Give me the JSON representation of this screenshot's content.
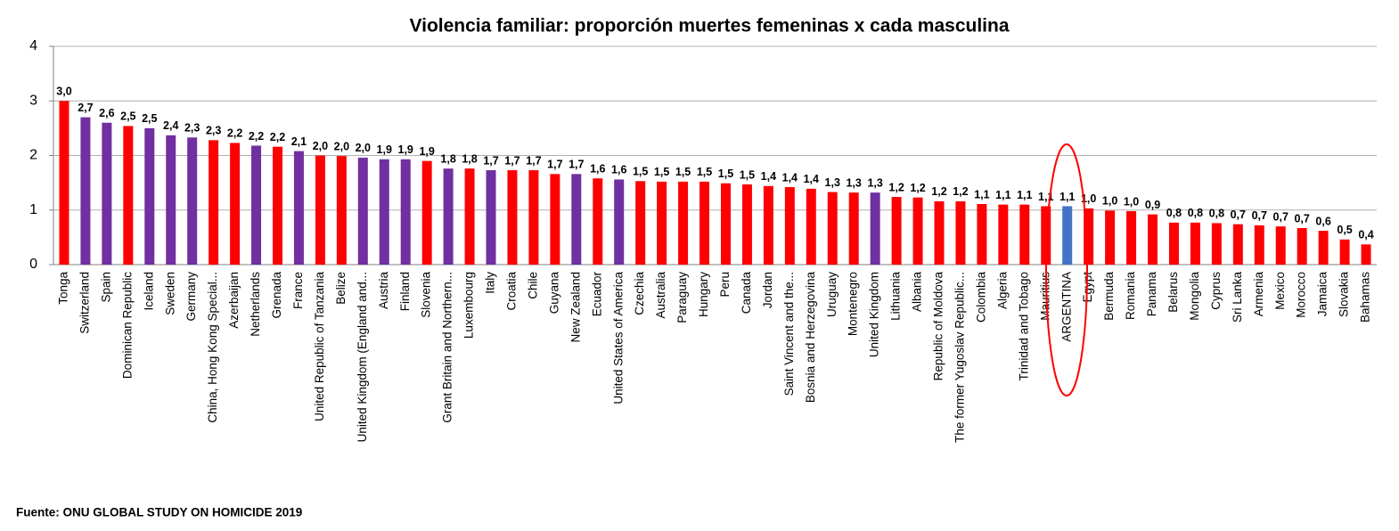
{
  "chart_data": {
    "type": "bar",
    "title": "Violencia familiar: proporción muertes femeninas x  cada masculina",
    "source": "Fuente: ONU GLOBAL STUDY ON HOMICIDE 2019",
    "categories": [
      "Tonga",
      "Switzerland",
      "Spain",
      "Dominican Republic",
      "Iceland",
      "Sweden",
      "Germany",
      "China, Hong Kong Special...",
      "Azerbaijan",
      "Netherlands",
      "Grenada",
      "France",
      "United Republic of Tanzania",
      "Belize",
      "United Kingdom (England and...",
      "Austria",
      "Finland",
      "Slovenia",
      "Grant Britain and Northern...",
      "Luxembourg",
      "Italy",
      "Croatia",
      "Chile",
      "Guyana",
      "New Zealand",
      "Ecuador",
      "United States of America",
      "Czechia",
      "Australia",
      "Paraguay",
      "Hungary",
      "Peru",
      "Canada",
      "Jordan",
      "Saint Vincent and the...",
      "Bosnia and Herzegovina",
      "Uruguay",
      "Montenegro",
      "United Kingdom",
      "Lithuania",
      "Albania",
      "Republic of Moldova",
      "The former Yugoslav Republic...",
      "Colombia",
      "Algeria",
      "Trinidad and Tobago",
      "Mauritius",
      "ARGENTINA",
      "Egypt",
      "Bermuda",
      "Romania",
      "Panama",
      "Belarus",
      "Mongolia",
      "Cyprus",
      "Sri Lanka",
      "Armenia",
      "Mexico",
      "Morocco",
      "Jamaica",
      "Slovakia",
      "Bahamas"
    ],
    "values": [
      3.0,
      2.7,
      2.6,
      2.54,
      2.5,
      2.37,
      2.33,
      2.28,
      2.23,
      2.18,
      2.16,
      2.08,
      2.0,
      1.99,
      1.96,
      1.93,
      1.93,
      1.9,
      1.76,
      1.76,
      1.73,
      1.73,
      1.73,
      1.66,
      1.66,
      1.58,
      1.56,
      1.53,
      1.52,
      1.52,
      1.52,
      1.49,
      1.47,
      1.44,
      1.42,
      1.39,
      1.33,
      1.32,
      1.32,
      1.24,
      1.23,
      1.16,
      1.16,
      1.11,
      1.1,
      1.1,
      1.07,
      1.07,
      1.03,
      0.99,
      0.98,
      0.92,
      0.77,
      0.77,
      0.76,
      0.74,
      0.72,
      0.7,
      0.67,
      0.62,
      0.46,
      0.37
    ],
    "value_labels": [
      "3,0",
      "2,7",
      "2,6",
      "2,5",
      "2,5",
      "2,4",
      "2,3",
      "2,3",
      "2,2",
      "2,2",
      "2,2",
      "2,1",
      "2,0",
      "2,0",
      "2,0",
      "1,9",
      "1,9",
      "1,9",
      "1,8",
      "1,8",
      "1,7",
      "1,7",
      "1,7",
      "1,7",
      "1,7",
      "1,6",
      "1,6",
      "1,5",
      "1,5",
      "1,5",
      "1,5",
      "1,5",
      "1,5",
      "1,4",
      "1,4",
      "1,4",
      "1,3",
      "1,3",
      "1,3",
      "1,2",
      "1,2",
      "1,2",
      "1,2",
      "1,1",
      "1,1",
      "1,1",
      "1,1",
      "1,1",
      "1,0",
      "1,0",
      "1,0",
      "0,9",
      "0,8",
      "0,8",
      "0,8",
      "0,7",
      "0,7",
      "0,7",
      "0,7",
      "0,6",
      "0,5",
      "0,4"
    ],
    "colors": [
      "#ff0000",
      "#7030a0",
      "#7030a0",
      "#ff0000",
      "#7030a0",
      "#7030a0",
      "#7030a0",
      "#ff0000",
      "#ff0000",
      "#7030a0",
      "#ff0000",
      "#7030a0",
      "#ff0000",
      "#ff0000",
      "#7030a0",
      "#7030a0",
      "#7030a0",
      "#ff0000",
      "#7030a0",
      "#ff0000",
      "#7030a0",
      "#ff0000",
      "#ff0000",
      "#ff0000",
      "#7030a0",
      "#ff0000",
      "#7030a0",
      "#ff0000",
      "#ff0000",
      "#ff0000",
      "#ff0000",
      "#ff0000",
      "#ff0000",
      "#ff0000",
      "#ff0000",
      "#ff0000",
      "#ff0000",
      "#ff0000",
      "#7030a0",
      "#ff0000",
      "#ff0000",
      "#ff0000",
      "#ff0000",
      "#ff0000",
      "#ff0000",
      "#ff0000",
      "#ff0000",
      "#4472c4",
      "#ff0000",
      "#ff0000",
      "#ff0000",
      "#ff0000",
      "#ff0000",
      "#ff0000",
      "#ff0000",
      "#ff0000",
      "#ff0000",
      "#ff0000",
      "#ff0000",
      "#ff0000",
      "#ff0000",
      "#ff0000"
    ],
    "ylim": [
      0,
      4
    ],
    "yticks": [
      0,
      1,
      2,
      3,
      4
    ],
    "grid": true
  }
}
